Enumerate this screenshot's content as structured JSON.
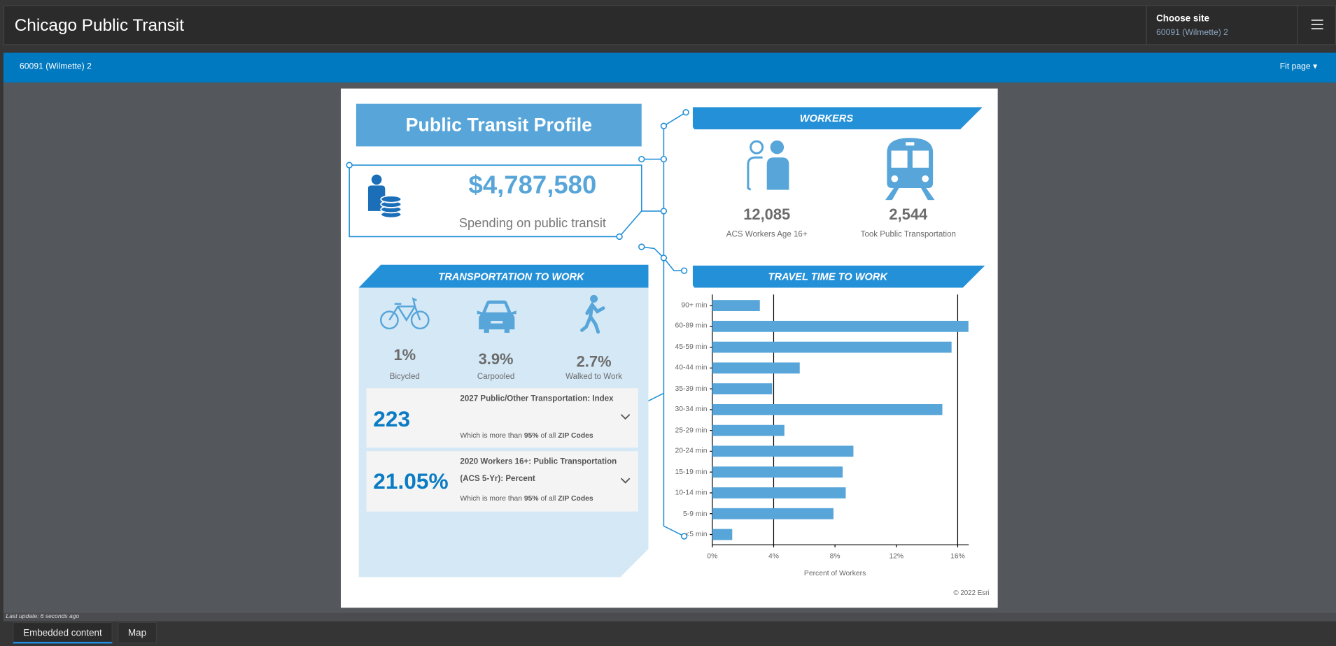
{
  "header": {
    "title": "Chicago Public Transit",
    "site_label": "Choose site",
    "site_value": "60091 (Wilmette) 2",
    "menu_icon": "hamburger-icon"
  },
  "toolbar": {
    "site_name": "60091 (Wilmette) 2",
    "zoom_label": "Fit page ▾"
  },
  "status": {
    "last_update": "Last update: 6 seconds ago"
  },
  "tabs": [
    {
      "label": "Embedded content",
      "active": true
    },
    {
      "label": "Map",
      "active": false
    }
  ],
  "colors": {
    "accent": "#0079c1",
    "header_blue": "#2490d8",
    "light_blue": "#57a5d9",
    "panel_bg": "#d4e8f6"
  },
  "infographic": {
    "title": "Public Transit Profile",
    "spending": {
      "value": "$4,787,580",
      "label": "Spending on public transit"
    },
    "workers": {
      "heading": "WORKERS",
      "items": [
        {
          "value": "12,085",
          "label": "ACS Workers Age 16+",
          "icon": "workers-icon"
        },
        {
          "value": "2,544",
          "label": "Took Public Transportation",
          "icon": "train-icon"
        }
      ]
    },
    "transport": {
      "heading": "TRANSPORTATION TO WORK",
      "modes": [
        {
          "value": "1%",
          "label": "Bicycled",
          "icon": "bicycle-icon"
        },
        {
          "value": "3.9%",
          "label": "Carpooled",
          "icon": "car-icon"
        },
        {
          "value": "2.7%",
          "label": "Walked to Work",
          "icon": "walking-icon"
        }
      ],
      "cards": [
        {
          "value": "223",
          "title": "2027 Public/Other Transportation: Index",
          "sub_pre": "Which is more than ",
          "sub_pct": "95%",
          "sub_mid": " of all ",
          "sub_end": "ZIP Codes"
        },
        {
          "value": "21.05%",
          "title": "2020 Workers 16+: Public Transportation (ACS 5-Yr): Percent",
          "sub_pre": "Which is more than ",
          "sub_pct": "95%",
          "sub_mid": " of all ",
          "sub_end": "ZIP Codes"
        }
      ]
    },
    "travel_heading": "TRAVEL TIME TO WORK",
    "copyright": "© 2022 Esri"
  },
  "chart_data": {
    "type": "bar",
    "orientation": "horizontal",
    "categories": [
      "90+ min",
      "60-89 min",
      "45-59 min",
      "40-44 min",
      "35-39 min",
      "30-34 min",
      "25-29 min",
      "20-24 min",
      "15-19 min",
      "10-14 min",
      "5-9 min",
      "<5 min"
    ],
    "values": [
      3.1,
      16.7,
      15.6,
      5.7,
      3.9,
      15.0,
      4.7,
      9.2,
      8.5,
      8.7,
      7.9,
      1.3
    ],
    "xlabel": "Percent of Workers",
    "ylabel": "",
    "xlim": [
      0,
      16.8
    ],
    "xticks": [
      "0%",
      "4%",
      "8%",
      "12%",
      "16%"
    ],
    "grid_at": [
      4,
      16
    ],
    "color": "#57a5d9"
  }
}
